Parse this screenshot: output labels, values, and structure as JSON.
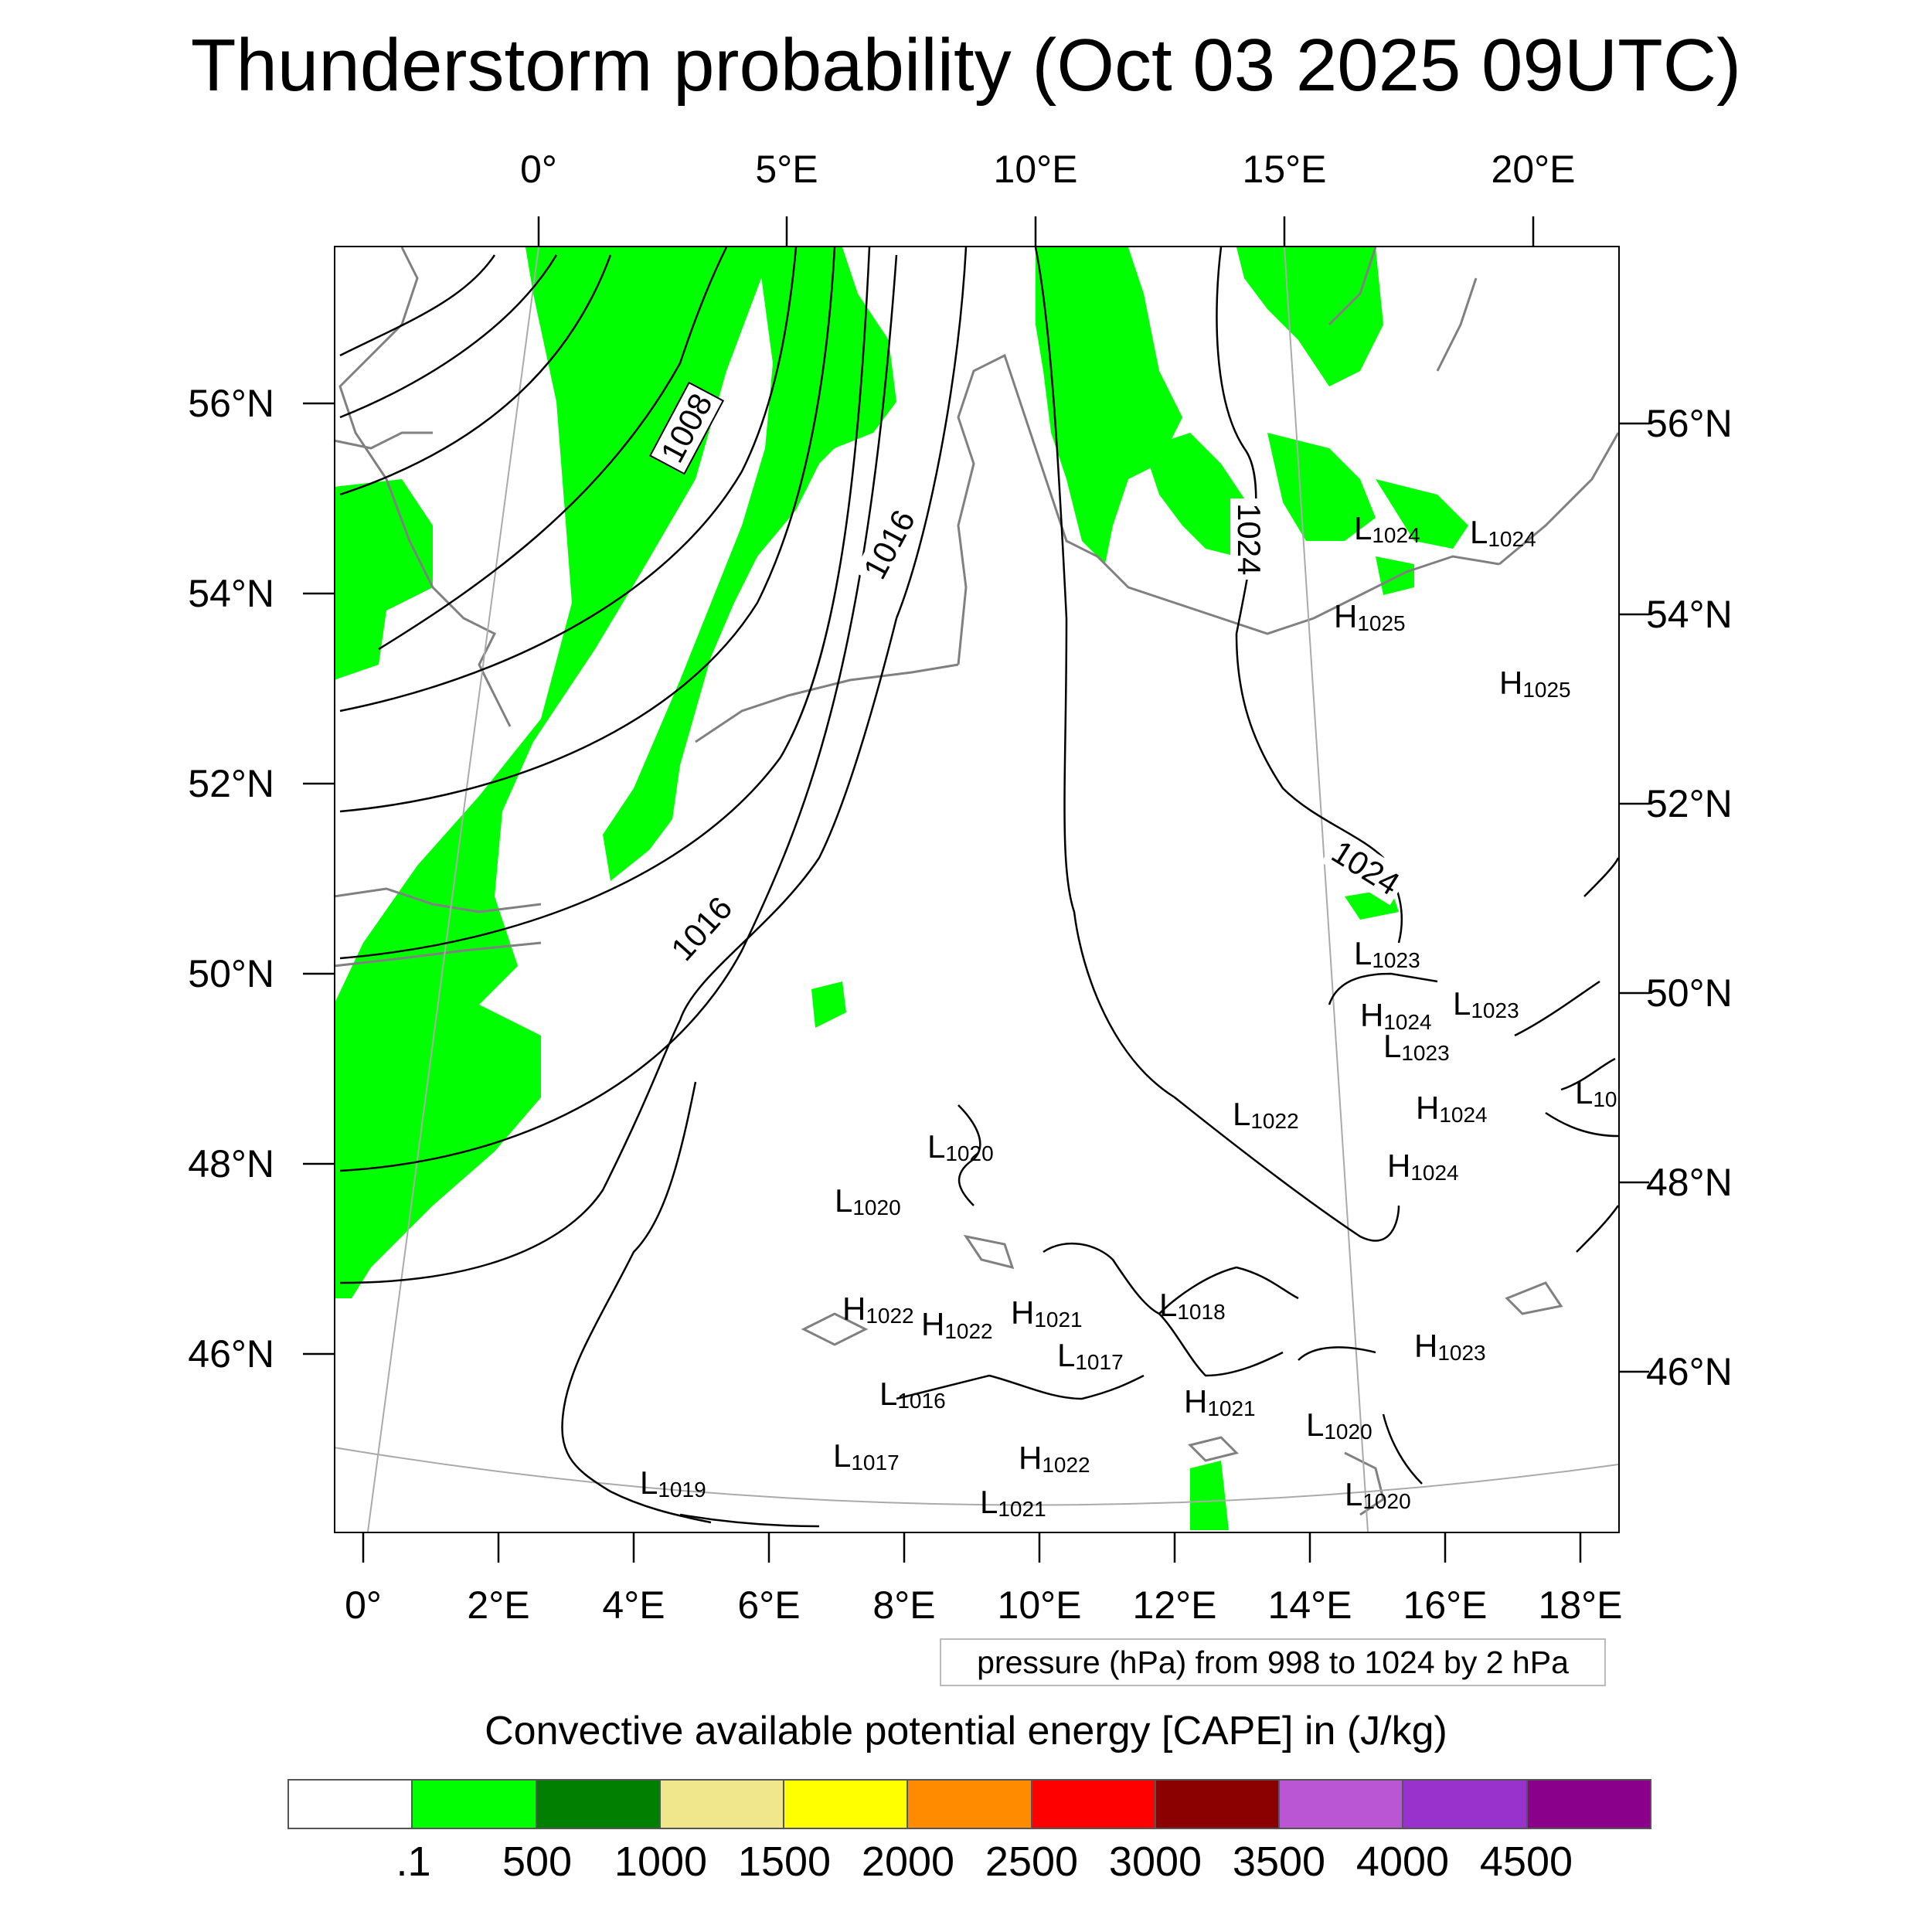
{
  "title": "Thunderstorm probability (Oct 03 2025 09UTC)",
  "top_lon_labels": [
    "0°",
    "5°E",
    "10°E",
    "15°E",
    "20°E"
  ],
  "bottom_lon_labels": [
    "0°",
    "2°E",
    "4°E",
    "6°E",
    "8°E",
    "10°E",
    "12°E",
    "14°E",
    "16°E",
    "18°E"
  ],
  "left_lat_labels": [
    "56°N",
    "54°N",
    "52°N",
    "50°N",
    "48°N",
    "46°N"
  ],
  "right_lat_labels": [
    "56°N",
    "54°N",
    "52°N",
    "50°N",
    "48°N",
    "46°N"
  ],
  "isobar_labels": [
    "1008",
    "1016",
    "1016",
    "1024",
    "1024"
  ],
  "pressure_centers": [
    {
      "type": "L",
      "value": "1024"
    },
    {
      "type": "L",
      "value": "1024"
    },
    {
      "type": "H",
      "value": "1025"
    },
    {
      "type": "H",
      "value": "1025"
    },
    {
      "type": "L",
      "value": "1023"
    },
    {
      "type": "H",
      "value": "1024"
    },
    {
      "type": "L",
      "value": "1023"
    },
    {
      "type": "L",
      "value": "1023"
    },
    {
      "type": "H",
      "value": "1024"
    },
    {
      "type": "L",
      "value": "10"
    },
    {
      "type": "L",
      "value": "1022"
    },
    {
      "type": "H",
      "value": "1024"
    },
    {
      "type": "L",
      "value": "1020"
    },
    {
      "type": "L",
      "value": "1020"
    },
    {
      "type": "H",
      "value": "1022"
    },
    {
      "type": "H",
      "value": "1022"
    },
    {
      "type": "H",
      "value": "1021"
    },
    {
      "type": "L",
      "value": "1018"
    },
    {
      "type": "L",
      "value": "1017"
    },
    {
      "type": "H",
      "value": "1023"
    },
    {
      "type": "L",
      "value": "1016"
    },
    {
      "type": "H",
      "value": "1021"
    },
    {
      "type": "L",
      "value": "1020"
    },
    {
      "type": "L",
      "value": "1017"
    },
    {
      "type": "H",
      "value": "1022"
    },
    {
      "type": "L",
      "value": "1019"
    },
    {
      "type": "L",
      "value": "1021"
    },
    {
      "type": "L",
      "value": "1020"
    }
  ],
  "pressure_note": "pressure (hPa) from 998 to 1024 by 2 hPa",
  "colorbar": {
    "title": "Convective available potential energy [CAPE] in (J/kg)",
    "colors": [
      "#ffffff",
      "#00ff00",
      "#007f00",
      "#f0e68c",
      "#ffff00",
      "#ff8c00",
      "#ff0000",
      "#8b0000",
      "#ba55d3",
      "#9932cc",
      "#8b008b"
    ],
    "labels": [
      ".1",
      "500",
      "1000",
      "1500",
      "2000",
      "2500",
      "3000",
      "3500",
      "4000",
      "4500"
    ]
  },
  "colors": {
    "cape_fill": "#00ff00",
    "coast": "#808080",
    "isobar": "#000000",
    "grid": "#aaaaaa"
  }
}
